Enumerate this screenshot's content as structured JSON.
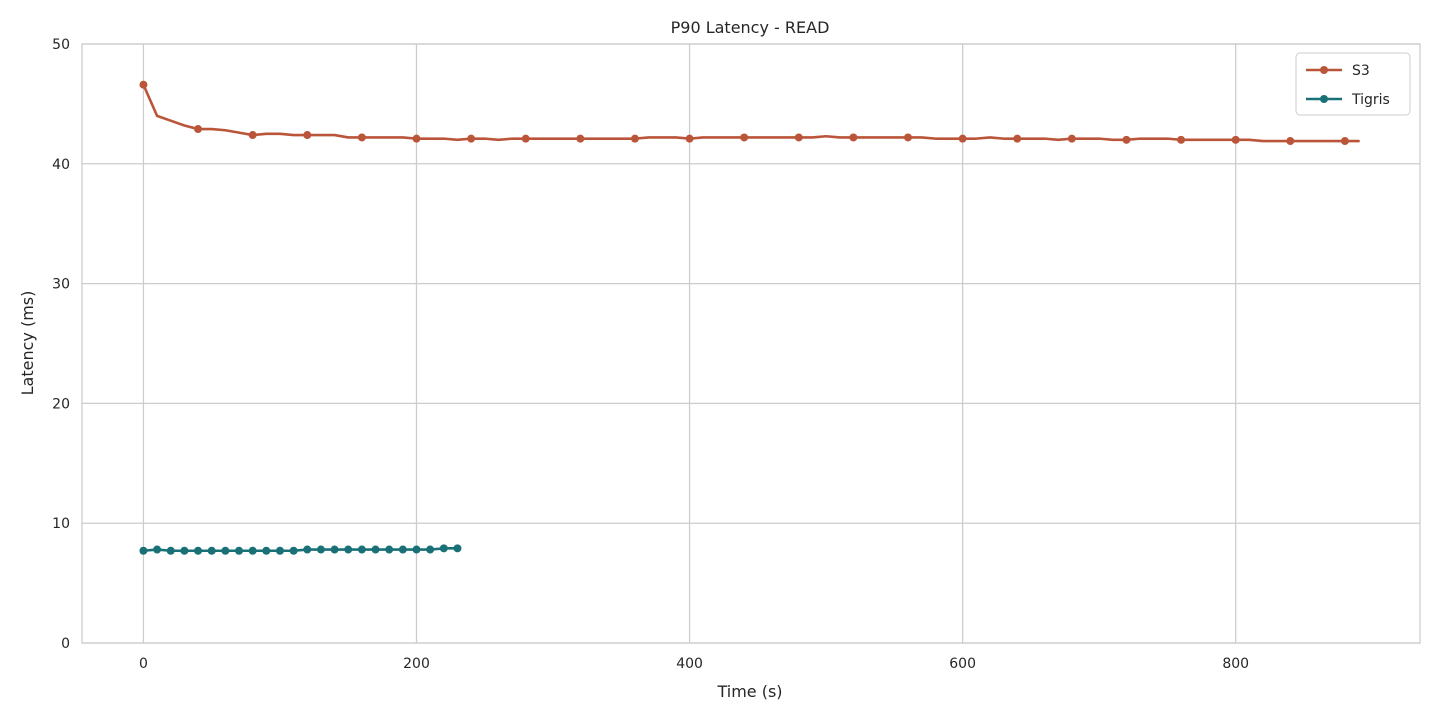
{
  "chart_data": {
    "type": "line",
    "title": "P90 Latency - READ",
    "xlabel": "Time (s)",
    "ylabel": "Latency (ms)",
    "xlim": [
      -45,
      935
    ],
    "ylim": [
      0,
      50
    ],
    "xticks": [
      0,
      200,
      400,
      600,
      800
    ],
    "yticks": [
      0,
      10,
      20,
      30,
      40,
      50
    ],
    "grid": true,
    "legend_position": "top-right",
    "series": [
      {
        "name": "S3",
        "color": "#BA553A",
        "x": [
          0,
          10,
          20,
          30,
          40,
          50,
          60,
          70,
          80,
          90,
          100,
          110,
          120,
          130,
          140,
          150,
          160,
          170,
          180,
          190,
          200,
          210,
          220,
          230,
          240,
          250,
          260,
          270,
          280,
          290,
          300,
          310,
          320,
          330,
          340,
          350,
          360,
          370,
          380,
          390,
          400,
          410,
          420,
          430,
          440,
          450,
          460,
          470,
          480,
          490,
          500,
          510,
          520,
          530,
          540,
          550,
          560,
          570,
          580,
          590,
          600,
          610,
          620,
          630,
          640,
          650,
          660,
          670,
          680,
          690,
          700,
          710,
          720,
          730,
          740,
          750,
          760,
          770,
          780,
          790,
          800,
          810,
          820,
          830,
          840,
          850,
          860,
          870,
          880,
          890
        ],
        "y": [
          46.6,
          44.0,
          43.6,
          43.2,
          42.9,
          42.9,
          42.8,
          42.6,
          42.4,
          42.5,
          42.5,
          42.4,
          42.4,
          42.4,
          42.4,
          42.2,
          42.2,
          42.2,
          42.2,
          42.2,
          42.1,
          42.1,
          42.1,
          42.0,
          42.1,
          42.1,
          42.0,
          42.1,
          42.1,
          42.1,
          42.1,
          42.1,
          42.1,
          42.1,
          42.1,
          42.1,
          42.1,
          42.2,
          42.2,
          42.2,
          42.1,
          42.2,
          42.2,
          42.2,
          42.2,
          42.2,
          42.2,
          42.2,
          42.2,
          42.2,
          42.3,
          42.2,
          42.2,
          42.2,
          42.2,
          42.2,
          42.2,
          42.2,
          42.1,
          42.1,
          42.1,
          42.1,
          42.2,
          42.1,
          42.1,
          42.1,
          42.1,
          42.0,
          42.1,
          42.1,
          42.1,
          42.0,
          42.0,
          42.1,
          42.1,
          42.1,
          42.0,
          42.0,
          42.0,
          42.0,
          42.0,
          42.0,
          41.9,
          41.9,
          41.9,
          41.9,
          41.9,
          41.9,
          41.9,
          41.9
        ],
        "markers_every": 4
      },
      {
        "name": "Tigris",
        "color": "#1A7077",
        "x": [
          0,
          10,
          20,
          30,
          40,
          50,
          60,
          70,
          80,
          90,
          100,
          110,
          120,
          130,
          140,
          150,
          160,
          170,
          180,
          190,
          200,
          210,
          220,
          230
        ],
        "y": [
          7.7,
          7.8,
          7.7,
          7.7,
          7.7,
          7.7,
          7.7,
          7.7,
          7.7,
          7.7,
          7.7,
          7.7,
          7.8,
          7.8,
          7.8,
          7.8,
          7.8,
          7.8,
          7.8,
          7.8,
          7.8,
          7.8,
          7.9,
          7.9
        ],
        "markers_every": 1
      }
    ]
  }
}
